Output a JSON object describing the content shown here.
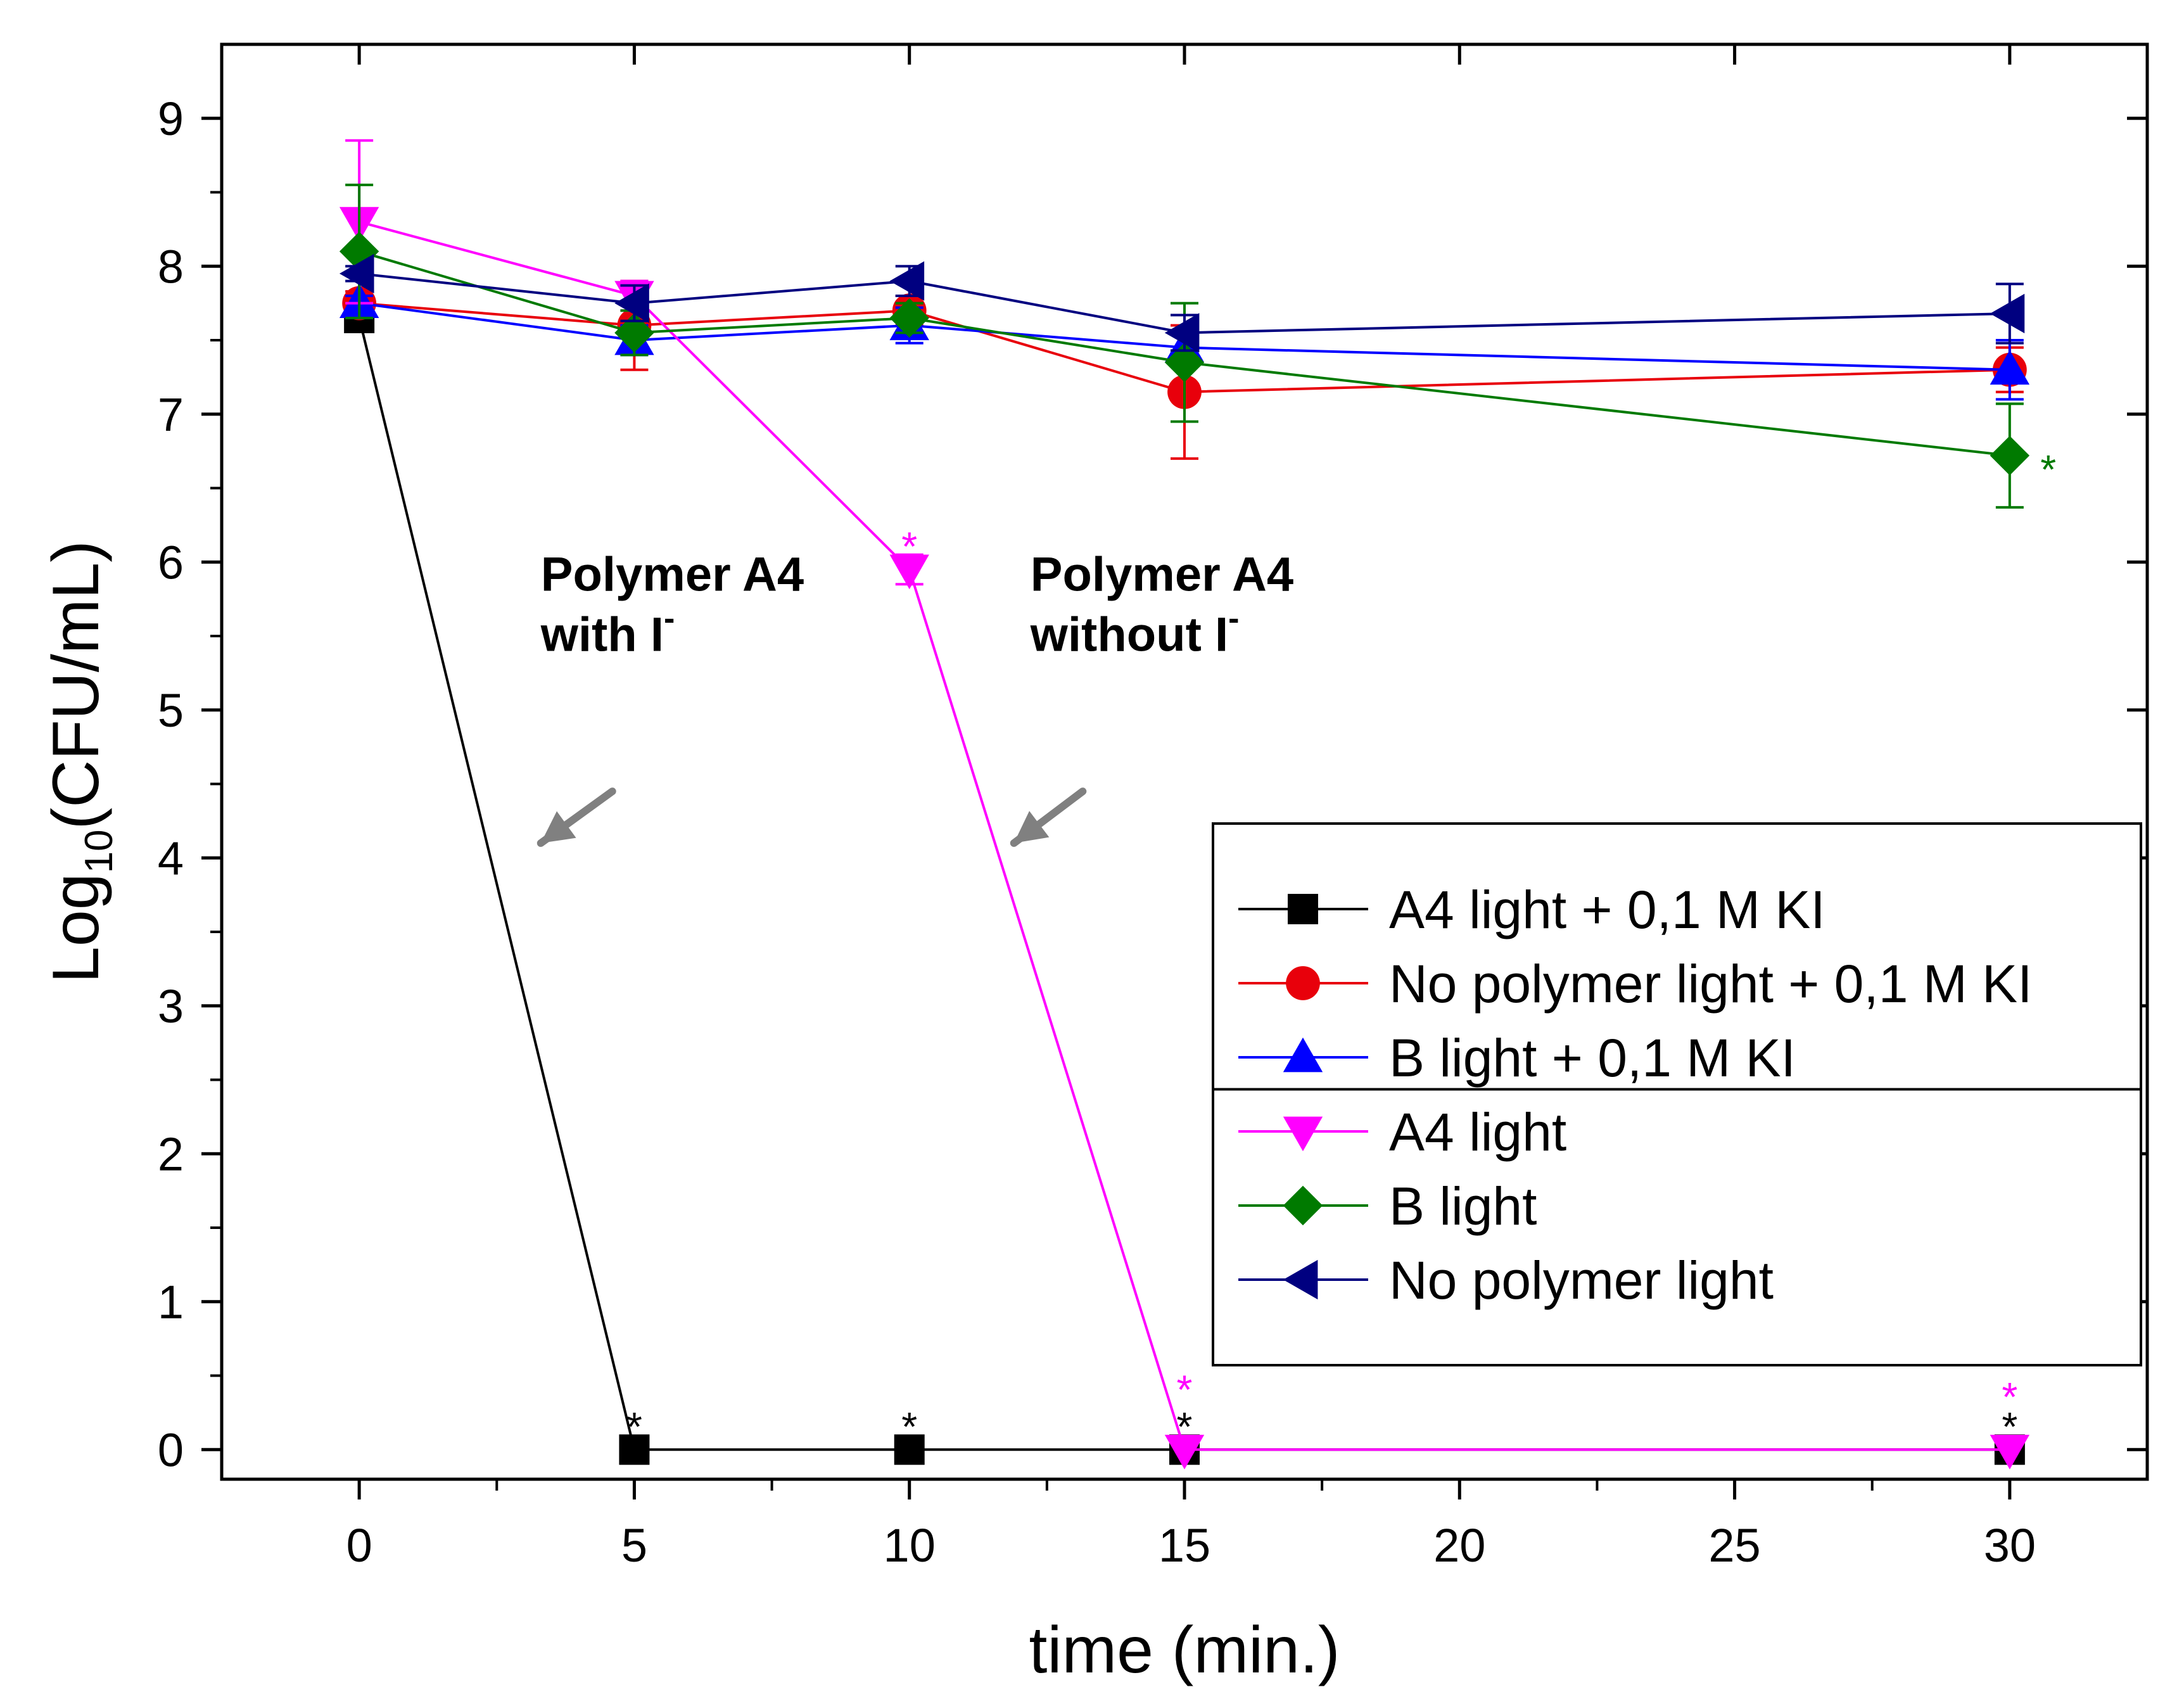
{
  "chart_data": {
    "type": "line",
    "title": "",
    "xlabel": "time (min.)",
    "ylabel": "Log10(CFU/mL)",
    "ylabel_parts": {
      "prefix": "Log",
      "subscript": "10",
      "suffix": "(CFU/mL)"
    },
    "xlim": [
      -2.5,
      32.5
    ],
    "ylim": [
      -0.2,
      9.5
    ],
    "x_ticks": [
      0,
      5,
      10,
      15,
      20,
      25,
      30
    ],
    "x_tick_labels": [
      "0",
      "5",
      "10",
      "15",
      "20",
      "25",
      "30"
    ],
    "y_ticks": [
      0,
      1,
      2,
      3,
      4,
      5,
      6,
      7,
      8,
      9
    ],
    "y_tick_labels": [
      "0",
      "1",
      "2",
      "3",
      "4",
      "5",
      "6",
      "7",
      "8",
      "9"
    ],
    "grid": false,
    "legend_position": "right-center",
    "series": [
      {
        "name": "A4 light + 0,1 M KI",
        "color": "#000000",
        "marker": "square",
        "x": [
          0,
          5,
          10,
          15,
          30
        ],
        "y": [
          7.65,
          0,
          0,
          0,
          0
        ],
        "err": [
          0.05,
          0,
          0,
          0,
          0
        ]
      },
      {
        "name": "No polymer light + 0,1 M KI",
        "color": "#e8000b",
        "marker": "circle",
        "x": [
          0,
          5,
          10,
          15,
          30
        ],
        "y": [
          7.75,
          7.6,
          7.7,
          7.15,
          7.3
        ],
        "err": [
          0.08,
          0.3,
          0.1,
          0.45,
          0.15
        ]
      },
      {
        "name": "B light + 0,1 M KI",
        "color": "#0000ff",
        "marker": "triangle-up",
        "x": [
          0,
          5,
          10,
          15,
          30
        ],
        "y": [
          7.75,
          7.5,
          7.6,
          7.45,
          7.3
        ],
        "err": [
          0.05,
          0.1,
          0.12,
          0.1,
          0.2
        ]
      },
      {
        "name": "A4 light",
        "color": "#ff00ff",
        "marker": "triangle-down",
        "x": [
          0,
          5,
          10,
          15,
          30
        ],
        "y": [
          8.3,
          7.8,
          5.95,
          0,
          0
        ],
        "err": [
          0.55,
          0.1,
          0.1,
          0,
          0
        ]
      },
      {
        "name": "B light",
        "color": "#007a00",
        "marker": "diamond",
        "x": [
          0,
          5,
          10,
          15,
          30
        ],
        "y": [
          8.1,
          7.55,
          7.65,
          7.35,
          6.72
        ],
        "err": [
          0.45,
          0.15,
          0.1,
          0.4,
          0.35
        ]
      },
      {
        "name": "No polymer light",
        "color": "#000080",
        "marker": "triangle-left",
        "x": [
          0,
          5,
          10,
          15,
          30
        ],
        "y": [
          7.95,
          7.75,
          7.9,
          7.55,
          7.68
        ],
        "err": [
          0.05,
          0.12,
          0.1,
          0.12,
          0.2
        ]
      }
    ],
    "legend_groups": [
      [
        0,
        1,
        2
      ],
      [
        3,
        4,
        5
      ]
    ],
    "annotations": [
      {
        "kind": "label",
        "lines": [
          "Polymer A4",
          "with I"
        ],
        "superscript": "-",
        "x": 3.3,
        "y": 5.4
      },
      {
        "kind": "label",
        "lines": [
          "Polymer A4",
          "without I"
        ],
        "superscript": "-",
        "x": 12.2,
        "y": 5.4
      },
      {
        "kind": "arrow",
        "from": [
          4.6,
          4.45
        ],
        "to": [
          3.3,
          4.1
        ],
        "color": "#808080"
      },
      {
        "kind": "arrow",
        "from": [
          13.15,
          4.45
        ],
        "to": [
          11.9,
          4.1
        ],
        "color": "#808080"
      }
    ],
    "significance_marks": [
      {
        "x": 5,
        "y": 0.25,
        "text": "*",
        "color": "#000000"
      },
      {
        "x": 10,
        "y": 0.25,
        "text": "*",
        "color": "#000000"
      },
      {
        "x": 15,
        "y": 0.25,
        "text": "*",
        "color": "#000000"
      },
      {
        "x": 15,
        "y": 0.5,
        "text": "*",
        "color": "#ff00ff"
      },
      {
        "x": 30,
        "y": 0.25,
        "text": "*",
        "color": "#000000"
      },
      {
        "x": 30,
        "y": 0.45,
        "text": "*",
        "color": "#ff00ff"
      },
      {
        "x": 10,
        "y": 6.2,
        "text": "*",
        "color": "#ff00ff"
      },
      {
        "x": 30.7,
        "y": 6.72,
        "text": "*",
        "color": "#007a00"
      }
    ]
  }
}
